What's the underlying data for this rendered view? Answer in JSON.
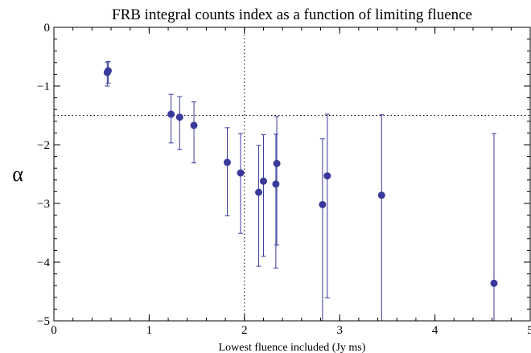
{
  "chart_data": {
    "type": "scatter",
    "title": "FRB integral counts index as a function of limiting fluence",
    "xlabel": "Lowest fluence included (Jy ms)",
    "ylabel": "α",
    "xlim": [
      0,
      5
    ],
    "ylim": [
      -5,
      0
    ],
    "xticks": [
      "0",
      "1",
      "2",
      "3",
      "4",
      "5"
    ],
    "yticks": [
      "0",
      "−1",
      "−2",
      "−3",
      "−4",
      "−5"
    ],
    "grid": false,
    "ref_lines": {
      "x": 2,
      "y": -1.5
    },
    "marker_color": "#3a3a9a",
    "points": [
      {
        "x": 0.56,
        "y": -0.77,
        "err_low": -1.0,
        "err_high": -0.6
      },
      {
        "x": 0.57,
        "y": -0.74,
        "err_low": -0.95,
        "err_high": -0.58
      },
      {
        "x": 1.23,
        "y": -1.48,
        "err_low": -1.97,
        "err_high": -1.14
      },
      {
        "x": 1.32,
        "y": -1.53,
        "err_low": -2.08,
        "err_high": -1.18
      },
      {
        "x": 1.47,
        "y": -1.67,
        "err_low": -2.31,
        "err_high": -1.27
      },
      {
        "x": 1.82,
        "y": -2.3,
        "err_low": -3.21,
        "err_high": -1.71
      },
      {
        "x": 1.96,
        "y": -2.48,
        "err_low": -3.51,
        "err_high": -1.81
      },
      {
        "x": 2.15,
        "y": -2.81,
        "err_low": -4.07,
        "err_high": -2.01
      },
      {
        "x": 2.2,
        "y": -2.62,
        "err_low": -3.9,
        "err_high": -1.83
      },
      {
        "x": 2.33,
        "y": -2.67,
        "err_low": -4.1,
        "err_high": -1.82
      },
      {
        "x": 2.34,
        "y": -2.32,
        "err_low": -3.71,
        "err_high": -1.52
      },
      {
        "x": 2.82,
        "y": -3.02,
        "err_low": -5.0,
        "err_high": -1.9
      },
      {
        "x": 2.87,
        "y": -2.53,
        "err_low": -4.61,
        "err_high": -1.48
      },
      {
        "x": 3.44,
        "y": -2.86,
        "err_low": -5.0,
        "err_high": -1.49
      },
      {
        "x": 4.62,
        "y": -4.36,
        "err_low": -5.0,
        "err_high": -1.81
      }
    ]
  }
}
